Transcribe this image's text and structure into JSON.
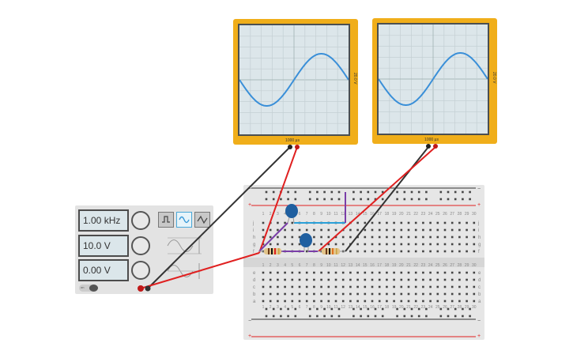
{
  "oscilloscopes": [
    {
      "time_label": "1000 µs",
      "volt_label": "20.0 V"
    },
    {
      "time_label": "1000 µs",
      "volt_label": "20.0 V"
    }
  ],
  "function_generator": {
    "frequency": "1.00 kHz",
    "amplitude": "10.0 V",
    "dc_offset": "0.00 V",
    "waveforms": [
      "square-icon",
      "sine-icon",
      "triangle-icon"
    ],
    "selected_waveform": "sine",
    "power_label": "on"
  },
  "breadboard": {
    "columns": [
      "1",
      "2",
      "3",
      "4",
      "5",
      "6",
      "7",
      "8",
      "9",
      "10",
      "11",
      "12",
      "13",
      "14",
      "15",
      "16",
      "17",
      "18",
      "19",
      "20",
      "21",
      "22",
      "23",
      "24",
      "25",
      "26",
      "27",
      "28",
      "29",
      "30"
    ],
    "rows_top": [
      "j",
      "i",
      "h",
      "g",
      "f"
    ],
    "rows_bottom": [
      "e",
      "d",
      "c",
      "b",
      "a"
    ],
    "rail_minus": "−",
    "rail_plus": "+"
  },
  "colors": {
    "scope": "#f0ae1a",
    "trace": "#3a8fd8",
    "red_wire": "#e02020",
    "black_wire": "#333333",
    "purple_wire": "#7a3ea8",
    "blue_wire": "#2aa0d8",
    "capacitor": "#1f5fa0"
  }
}
